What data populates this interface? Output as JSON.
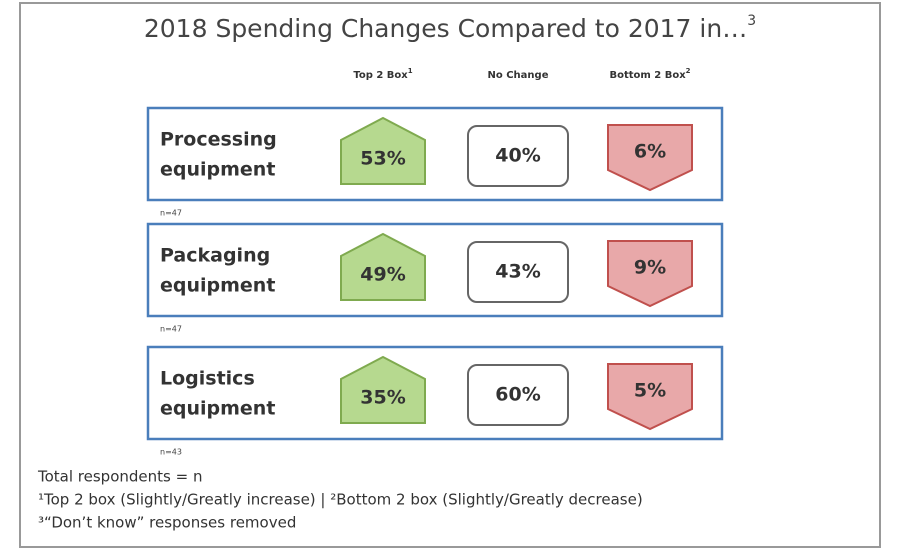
{
  "title": "2018 Spending Changes Compared to 2017 in…",
  "title_note": "3",
  "headers": [
    {
      "text": "Top 2 Box",
      "note": "1"
    },
    {
      "text": "No Change"
    },
    {
      "text": "Bottom 2 Box",
      "note": "2"
    }
  ],
  "rows": [
    {
      "label": [
        "Processing",
        "equipment"
      ],
      "top": "53%",
      "none": "40%",
      "bottom": "6%",
      "n": "n=47"
    },
    {
      "label": [
        "Packaging",
        "equipment"
      ],
      "top": "49%",
      "none": "43%",
      "bottom": "9%",
      "n": "n=47"
    },
    {
      "label": [
        "Logistics",
        "equipment"
      ],
      "top": "35%",
      "none": "60%",
      "bottom": "5%",
      "n": "n=43"
    }
  ],
  "footnotes": [
    "Total respondents = n",
    "¹Top 2 box (Slightly/Greatly increase) | ²Bottom 2 box (Slightly/Greatly decrease)",
    "³“Don’t know” responses removed"
  ]
}
